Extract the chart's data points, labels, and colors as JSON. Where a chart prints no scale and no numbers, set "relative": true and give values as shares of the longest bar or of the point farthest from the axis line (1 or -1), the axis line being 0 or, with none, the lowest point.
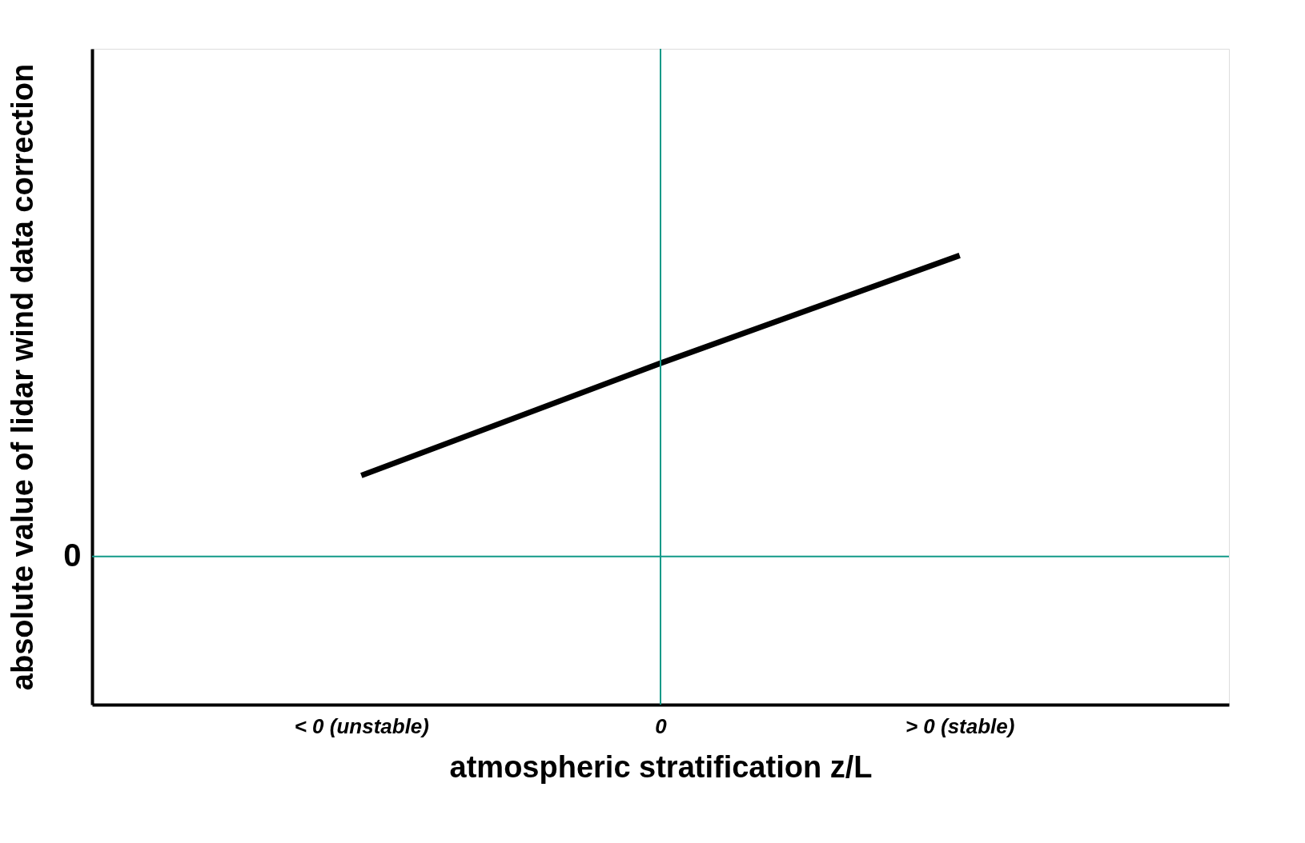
{
  "chart_data": {
    "type": "line",
    "relative": true,
    "xlabel": "atmospheric stratification z/L",
    "ylabel": "absolute value of lidar wind data correction",
    "categories": [
      "< 0 (unstable)",
      "0",
      "> 0 (stable)"
    ],
    "series": [
      {
        "color": "#000000",
        "values": [
          0.51,
          0.76,
          1.0
        ]
      }
    ],
    "ref_lines": [
      {
        "axis": "y",
        "value": 0.33,
        "label": "0",
        "color": "#119988"
      },
      {
        "axis": "x",
        "value": "0",
        "color": "#119988"
      }
    ],
    "grid": false,
    "marker": "none",
    "line_style": "solid"
  }
}
